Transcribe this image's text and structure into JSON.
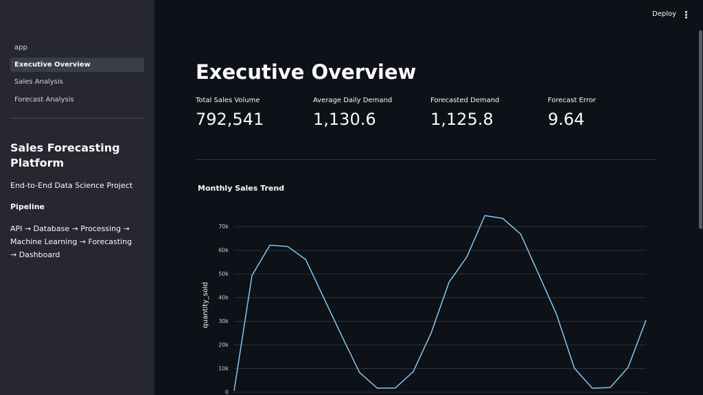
{
  "header": {
    "deploy": "Deploy"
  },
  "sidebar": {
    "nav": [
      "app",
      "Executive Overview",
      "Sales Analysis",
      "Forecast Analysis"
    ],
    "selected": 1,
    "heading": "Sales Forecasting Platform",
    "subtitle": "End-to-End Data Science Project",
    "pipeline_title": "Pipeline",
    "pipeline": "API → Database → Processing → Machine Learning → Forecasting → Dashboard"
  },
  "main": {
    "title": "Executive Overview",
    "metrics": [
      {
        "label": "Total Sales Volume",
        "value": "792,541"
      },
      {
        "label": "Average Daily Demand",
        "value": "1,130.6"
      },
      {
        "label": "Forecasted Demand",
        "value": "1,125.8"
      },
      {
        "label": "Forecast Error",
        "value": "9.64"
      }
    ]
  },
  "chart_data": {
    "type": "line",
    "title": "Monthly Sales Trend",
    "y_label": "quantity_sold",
    "series": [
      {
        "name": "quantity_sold",
        "color": "#83c9ff",
        "values": [
          600,
          49400,
          62200,
          61600,
          56100,
          40000,
          24000,
          8400,
          1700,
          1800,
          8700,
          25000,
          46500,
          57300,
          74700,
          73500,
          66900,
          50000,
          33000,
          10200,
          1700,
          2000,
          10500,
          30500
        ]
      }
    ],
    "ylim": [
      0,
      78000
    ],
    "yticks": [
      0,
      {
        "value": 10000,
        "label": "10k"
      },
      {
        "value": 20000,
        "label": "20k"
      },
      {
        "value": 30000,
        "label": "30k"
      },
      {
        "value": 40000,
        "label": "40k"
      },
      {
        "value": 50000,
        "label": "50k"
      },
      {
        "value": 60000,
        "label": "60k"
      },
      {
        "value": 70000,
        "label": "70k"
      }
    ],
    "grid": true
  }
}
